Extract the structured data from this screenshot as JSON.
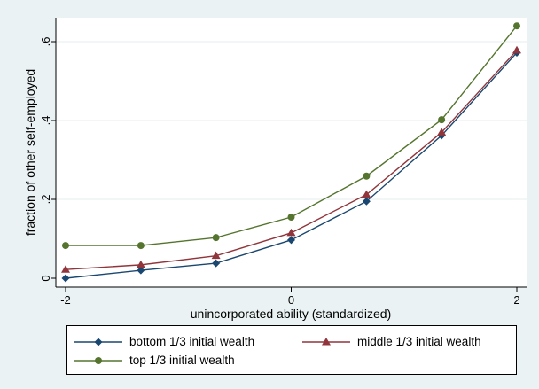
{
  "chart_data": {
    "type": "line",
    "title": "",
    "xlabel": "unincorporated ability (standardized)",
    "ylabel": "fraction of other self-employed",
    "xlim": [
      -2.1,
      2.1
    ],
    "ylim": [
      -0.01,
      0.67
    ],
    "xticks": [
      -2,
      0,
      2
    ],
    "xtick_labels": [
      "-2",
      "0",
      "2"
    ],
    "yticks": [
      0,
      0.2,
      0.4,
      0.6
    ],
    "ytick_labels": [
      "0",
      ".2",
      ".4",
      ".6"
    ],
    "grid": "horizontal",
    "x": [
      -2,
      -1.333,
      -0.667,
      0,
      0.667,
      1.333,
      2
    ],
    "series": [
      {
        "name": "bottom 1/3 initial wealth",
        "color": "#1a476f",
        "marker": "diamond",
        "values": [
          0.0,
          0.02,
          0.038,
          0.097,
          0.195,
          0.362,
          0.572
        ]
      },
      {
        "name": "middle 1/3 initial wealth",
        "color": "#90353b",
        "marker": "triangle",
        "values": [
          0.022,
          0.034,
          0.057,
          0.115,
          0.212,
          0.37,
          0.578
        ]
      },
      {
        "name": "top 1/3 initial wealth",
        "color": "#55752f",
        "marker": "circle",
        "values": [
          0.083,
          0.083,
          0.103,
          0.155,
          0.259,
          0.402,
          0.64
        ]
      }
    ],
    "legend_position": "bottom"
  }
}
